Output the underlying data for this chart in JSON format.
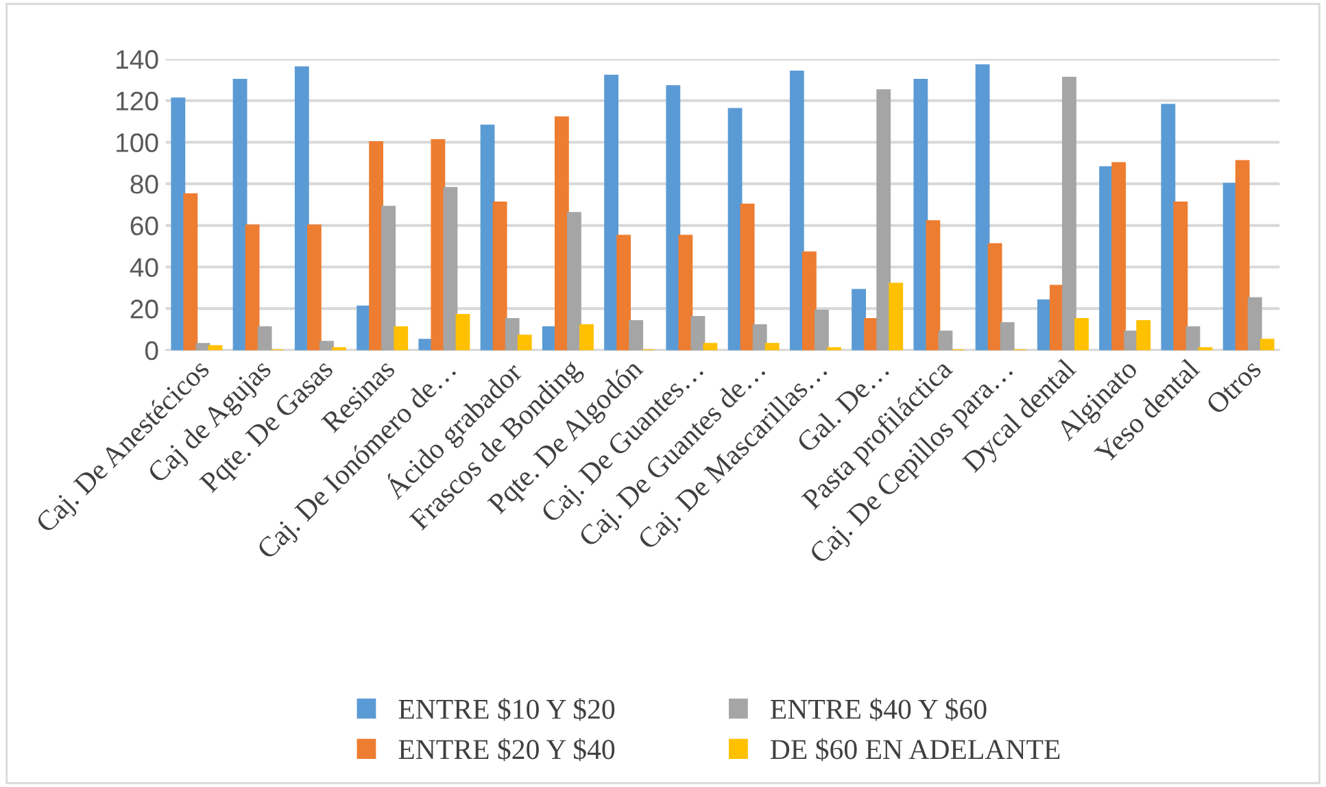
{
  "chart_data": {
    "type": "bar",
    "categories": [
      "Caj. De Anestécicos",
      "Caj de Agujas",
      "Pqte. De Gasas",
      "Resinas",
      "Caj. De Ionómero de…",
      "Ácido grabador",
      "Frascos de Bonding",
      "Pqte. De Algodón",
      "Caj. De Guantes…",
      "Caj. De Guantes de…",
      "Caj. De Mascarillas…",
      "Gal. De…",
      "Pasta profiláctica",
      "Caj. De Cepillos para…",
      "Dycal dental",
      "Alginato",
      "Yeso dental",
      "Otros"
    ],
    "series": [
      {
        "name": "ENTRE $10 Y $20",
        "color": "#5b9bd5",
        "values": [
          121,
          130,
          136,
          21,
          5,
          108,
          11,
          132,
          127,
          116,
          134,
          29,
          130,
          137,
          24,
          88,
          118,
          80
        ]
      },
      {
        "name": "ENTRE $20 Y $40",
        "color": "#ed7d31",
        "values": [
          75,
          60,
          60,
          100,
          101,
          71,
          112,
          55,
          55,
          70,
          47,
          15,
          62,
          51,
          31,
          90,
          71,
          91
        ]
      },
      {
        "name": "ENTRE $40 Y $60",
        "color": "#a5a5a5",
        "values": [
          3,
          11,
          4,
          69,
          78,
          15,
          66,
          14,
          16,
          12,
          19,
          125,
          9,
          13,
          131,
          9,
          11,
          25
        ]
      },
      {
        "name": "DE $60 EN ADELANTE",
        "color": "#ffc000",
        "values": [
          2,
          0,
          1,
          11,
          17,
          7,
          12,
          0,
          3,
          3,
          1,
          32,
          0,
          0,
          15,
          14,
          1,
          5
        ]
      }
    ],
    "ylim": [
      0,
      140
    ],
    "yticks": [
      0,
      20,
      40,
      60,
      80,
      100,
      120,
      140
    ],
    "grid": "y",
    "legend": "bottom"
  }
}
